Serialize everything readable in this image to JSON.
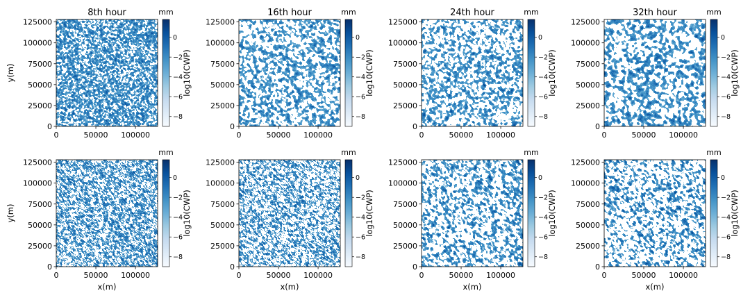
{
  "figure": {
    "panel_titles": [
      "8th hour",
      "16th hour",
      "24th hour",
      "32th hour"
    ],
    "colorbar_label": "log10(CWP)",
    "colorbar_unit": "mm"
  },
  "chart_data": {
    "type": "heatmap",
    "layout": {
      "rows": 2,
      "cols": 4
    },
    "colormap": "Blues",
    "colormap_colors": [
      "#f7fbff",
      "#deebf7",
      "#c6dbef",
      "#9ecae1",
      "#6baed6",
      "#4292c6",
      "#2171b5",
      "#08519c",
      "#08306b"
    ],
    "xlabel": "x(m)",
    "ylabel": "y(m)",
    "xlim": [
      0,
      128000
    ],
    "ylim": [
      0,
      128000
    ],
    "xticks": [
      0,
      50000,
      100000
    ],
    "yticks": [
      0,
      25000,
      50000,
      75000,
      100000,
      125000
    ],
    "colorbar": {
      "label": "log10(CWP)",
      "unit": "mm",
      "range": [
        -9,
        1.8
      ],
      "ticks": [
        0,
        -2,
        -4,
        -6,
        -8
      ],
      "tick_labels": [
        "0",
        "−2",
        "−4",
        "−6",
        "−8"
      ]
    },
    "panels": [
      {
        "row": 0,
        "col": 0,
        "title": "8th hour",
        "cloud_fraction": 0.7,
        "seed": 11,
        "scale": 1,
        "stretch": 1.2
      },
      {
        "row": 0,
        "col": 1,
        "title": "16th hour",
        "cloud_fraction": 0.5,
        "seed": 23,
        "scale": 2,
        "stretch": 1.3
      },
      {
        "row": 0,
        "col": 2,
        "title": "24th hour",
        "cloud_fraction": 0.47,
        "seed": 37,
        "scale": 2,
        "stretch": 1.3
      },
      {
        "row": 0,
        "col": 3,
        "title": "32th hour",
        "cloud_fraction": 0.5,
        "seed": 41,
        "scale": 3,
        "stretch": 1.2
      },
      {
        "row": 1,
        "col": 0,
        "title": "",
        "cloud_fraction": 0.58,
        "seed": 53,
        "scale": 1,
        "stretch": 2.4
      },
      {
        "row": 1,
        "col": 1,
        "title": "",
        "cloud_fraction": 0.5,
        "seed": 67,
        "scale": 1,
        "stretch": 2.2
      },
      {
        "row": 1,
        "col": 2,
        "title": "",
        "cloud_fraction": 0.45,
        "seed": 71,
        "scale": 2,
        "stretch": 2.0
      },
      {
        "row": 1,
        "col": 3,
        "title": "",
        "cloud_fraction": 0.4,
        "seed": 83,
        "scale": 2,
        "stretch": 2.0
      }
    ]
  }
}
